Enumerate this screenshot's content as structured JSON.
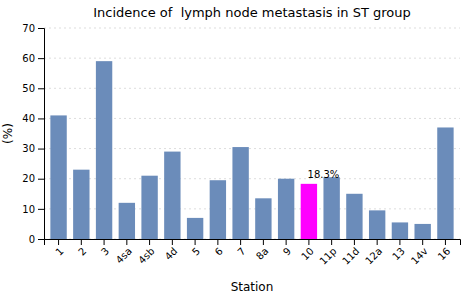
{
  "chart_data": {
    "type": "bar",
    "title": "Incidence of  lymph node metastasis in ST group",
    "x_label": "Station",
    "y_label": "(%)",
    "categories": [
      "1",
      "2",
      "3",
      "4sa",
      "4sb",
      "4d",
      "5",
      "6",
      "7",
      "8a",
      "9",
      "10",
      "11p",
      "11d",
      "12a",
      "13",
      "14v",
      "16"
    ],
    "values": [
      41,
      23,
      59,
      12,
      21,
      29,
      7,
      19.5,
      30.5,
      13.5,
      20,
      18.3,
      20.5,
      15,
      9.5,
      5.5,
      5,
      37
    ],
    "colors": [
      "#6b8cba",
      "#6b8cba",
      "#6b8cba",
      "#6b8cba",
      "#6b8cba",
      "#6b8cba",
      "#6b8cba",
      "#6b8cba",
      "#6b8cba",
      "#6b8cba",
      "#6b8cba",
      "#ff00ff",
      "#6b8cba",
      "#6b8cba",
      "#6b8cba",
      "#6b8cba",
      "#6b8cba",
      "#6b8cba"
    ],
    "annotations": [
      {
        "text": "18.3%",
        "category": "10",
        "value": 18.3
      }
    ],
    "ylim": [
      0,
      70
    ],
    "yticks": [
      0,
      10,
      20,
      30,
      40,
      50,
      60,
      70
    ],
    "grid": true
  }
}
